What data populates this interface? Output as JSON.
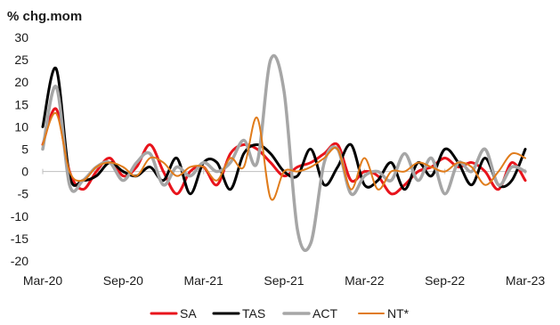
{
  "chart_data": {
    "type": "line",
    "ylabel": "% chg.mom",
    "ylim": [
      -20,
      30
    ],
    "yticks": [
      30,
      25,
      20,
      15,
      10,
      5,
      0,
      -5,
      -10,
      -15,
      -20
    ],
    "x_tick_labels": [
      "Mar-20",
      "Sep-20",
      "Mar-21",
      "Sep-21",
      "Mar-22",
      "Sep-22",
      "Mar-23"
    ],
    "x": [
      "Mar-20",
      "Apr-20",
      "May-20",
      "Jun-20",
      "Jul-20",
      "Aug-20",
      "Sep-20",
      "Oct-20",
      "Nov-20",
      "Dec-20",
      "Jan-21",
      "Feb-21",
      "Mar-21",
      "Apr-21",
      "May-21",
      "Jun-21",
      "Jul-21",
      "Aug-21",
      "Sep-21",
      "Oct-21",
      "Nov-21",
      "Dec-21",
      "Jan-22",
      "Feb-22",
      "Mar-22",
      "Apr-22",
      "May-22",
      "Jun-22",
      "Jul-22",
      "Aug-22",
      "Sep-22",
      "Oct-22",
      "Nov-22",
      "Dec-22",
      "Jan-23",
      "Feb-23",
      "Mar-23"
    ],
    "grid": false,
    "legend_position": "bottom",
    "series": [
      {
        "name": "SA",
        "color": "#e8141c",
        "width": 3,
        "values": [
          6,
          14,
          0,
          -4,
          0,
          3,
          -1,
          1,
          6,
          0,
          -5,
          0,
          1,
          -3,
          4,
          6,
          5,
          2,
          -1,
          1,
          2,
          4,
          6,
          -2,
          0,
          -1,
          -5,
          -3,
          0,
          1,
          3,
          1,
          2,
          0,
          -4,
          2,
          -2
        ]
      },
      {
        "name": "TAS",
        "color": "#000000",
        "width": 3,
        "values": [
          10,
          23,
          -1,
          -2,
          -1,
          2,
          0,
          -1,
          1,
          -2,
          3,
          -5,
          2,
          2,
          -4,
          4,
          6,
          4,
          0,
          -1,
          5,
          -3,
          1,
          6,
          -3,
          -2,
          2,
          -4,
          2,
          -1,
          5,
          2,
          -3,
          3,
          -3,
          -2,
          5
        ]
      },
      {
        "name": "ACT",
        "color": "#a6a6a6",
        "width": 3.5,
        "values": [
          5,
          19,
          -3,
          -2,
          1,
          2,
          -2,
          2,
          4,
          -3,
          1,
          -1,
          2,
          0,
          2,
          7,
          2,
          25,
          18,
          -13,
          -16,
          2,
          5,
          -5,
          -1,
          0,
          -2,
          4,
          -2,
          3,
          -5,
          2,
          0,
          5,
          -3,
          1,
          0
        ]
      },
      {
        "name": "NT*",
        "color": "#e07b1a",
        "width": 2,
        "values": [
          6,
          13,
          0,
          -2,
          1,
          2,
          1,
          -1,
          3,
          2,
          -1,
          1,
          1,
          -2,
          3,
          1,
          12,
          -6,
          0,
          0,
          1,
          3,
          5,
          -4,
          3,
          -4,
          0,
          0,
          2,
          1,
          0,
          2,
          1,
          -3,
          0,
          4,
          3
        ]
      }
    ]
  }
}
